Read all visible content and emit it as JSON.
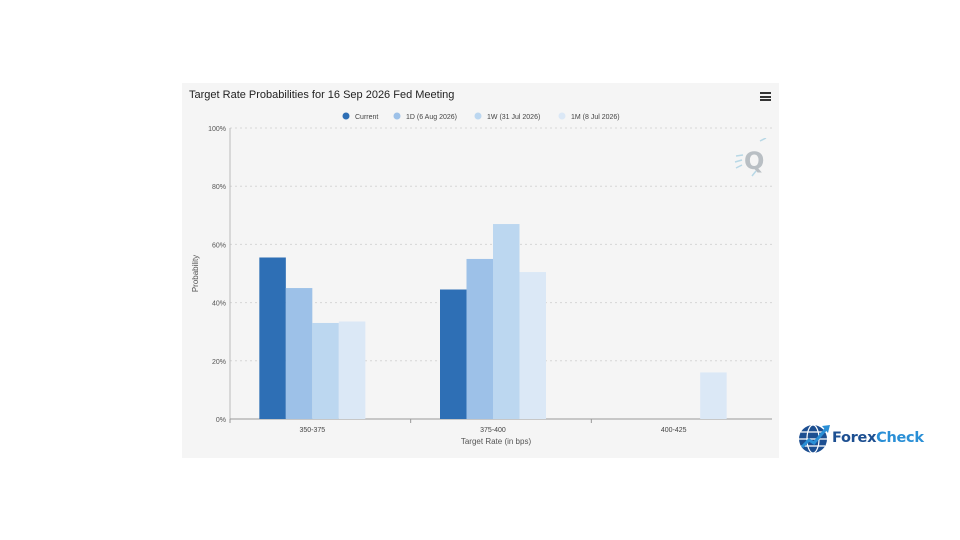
{
  "chart_data": {
    "type": "bar",
    "title": "Target Rate Probabilities for 16 Sep 2026 Fed Meeting",
    "xlabel": "Target Rate (in bps)",
    "ylabel": "Probability",
    "categories": [
      "350-375",
      "375-400",
      "400-425"
    ],
    "ylim": [
      0,
      100
    ],
    "yticks": [
      "0%",
      "20%",
      "40%",
      "60%",
      "80%",
      "100%"
    ],
    "grid": true,
    "legend_position": "top-center",
    "series": [
      {
        "name": "Current",
        "color": "#2e6fb5",
        "values": [
          55.5,
          44.5,
          0
        ]
      },
      {
        "name": "1D (6 Aug 2026)",
        "color": "#9dc1e8",
        "values": [
          45,
          55,
          0
        ]
      },
      {
        "name": "1W (31 Jul 2026)",
        "color": "#bcd7f0",
        "values": [
          33,
          67,
          0
        ]
      },
      {
        "name": "1M (8 Jul 2026)",
        "color": "#dbe8f6",
        "values": [
          33.5,
          50.5,
          16
        ]
      }
    ]
  },
  "menu_icon": "hamburger-menu-icon",
  "watermark_icon": "q-logo-icon",
  "logo": {
    "part1": "Forex",
    "part2": "Check",
    "icon": "globe-chart-icon"
  }
}
